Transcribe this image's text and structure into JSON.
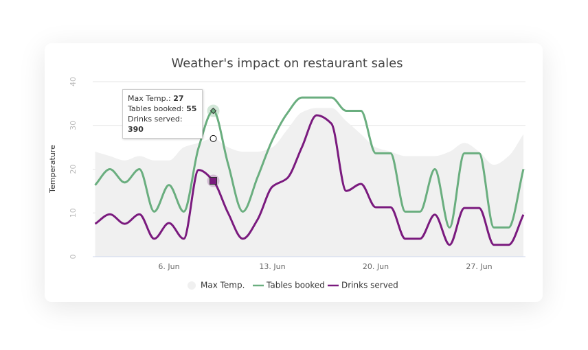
{
  "chart_data": {
    "type": "spline",
    "title": "Weather's impact on restaurant sales",
    "y_axis_label": "Temperature",
    "categories": [
      null,
      null,
      null,
      null,
      null,
      "6. Jun",
      null,
      null,
      null,
      null,
      null,
      null,
      "13. Jun",
      null,
      null,
      null,
      null,
      null,
      null,
      "20. Jun",
      null,
      null,
      null,
      null,
      null,
      null,
      "27. Jun",
      null,
      null,
      null
    ],
    "ylim": [
      0,
      40
    ],
    "yticks": [
      0,
      10,
      20,
      30,
      40
    ],
    "grid": true,
    "legend": "bottom",
    "series": [
      {
        "name": "Max Temp.",
        "type": "area",
        "color": "#f0f0f0",
        "values": [
          24,
          23,
          22,
          23,
          22,
          22,
          25,
          26,
          27,
          25,
          24,
          24,
          25,
          29,
          33,
          34,
          34,
          31,
          28,
          25,
          24,
          23,
          23,
          23,
          24,
          26,
          24,
          21,
          23,
          28
        ]
      },
      {
        "name": "Tables booked",
        "type": "spline",
        "color": "#6aae7f",
        "ylim": [
          0,
          66
        ],
        "values": [
          27,
          33,
          28,
          33,
          17,
          27,
          17,
          41,
          55,
          35,
          17,
          30,
          44,
          54,
          60,
          60,
          60,
          55,
          55,
          39,
          39,
          17,
          17,
          33,
          11,
          39,
          39,
          11,
          11,
          33
        ]
      },
      {
        "name": "Drinks served",
        "type": "spline",
        "color": "#7a1a7e",
        "ylim": [
          0,
          900
        ],
        "values": [
          169,
          218,
          169,
          218,
          92,
          173,
          92,
          446,
          390,
          225,
          92,
          191,
          360,
          403,
          563,
          727,
          684,
          338,
          374,
          254,
          254,
          92,
          92,
          216,
          61,
          250,
          250,
          61,
          61,
          216
        ]
      }
    ],
    "tooltip": {
      "labels": [
        "Max Temp.:",
        "Tables booked:",
        "Drinks served:"
      ]
    }
  }
}
